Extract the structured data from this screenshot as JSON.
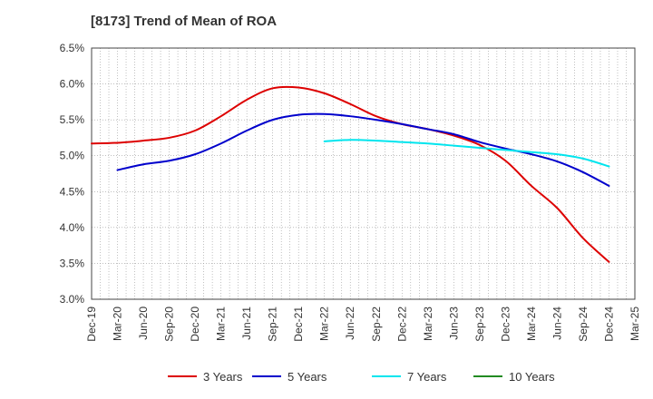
{
  "chart_data": {
    "type": "line",
    "title": "[8173]  Trend of Mean of ROA",
    "xlabel": "",
    "ylabel": "",
    "ylim": [
      3.0,
      6.5
    ],
    "y_ticks": [
      "3.0%",
      "3.5%",
      "4.0%",
      "4.5%",
      "5.0%",
      "5.5%",
      "6.0%",
      "6.5%"
    ],
    "x_ticks": [
      "Dec-19",
      "Mar-20",
      "Jun-20",
      "Sep-20",
      "Dec-20",
      "Mar-21",
      "Jun-21",
      "Sep-21",
      "Dec-21",
      "Mar-22",
      "Jun-22",
      "Sep-22",
      "Dec-22",
      "Mar-23",
      "Jun-23",
      "Sep-23",
      "Dec-23",
      "Mar-24",
      "Jun-24",
      "Sep-24",
      "Dec-24",
      "Mar-25"
    ],
    "grid": true,
    "legend_position": "bottom",
    "series": [
      {
        "name": "3 Years",
        "color": "#dd0000",
        "values": [
          5.17,
          5.18,
          5.21,
          5.25,
          5.35,
          5.55,
          5.78,
          5.94,
          5.95,
          5.87,
          5.72,
          5.55,
          5.44,
          5.37,
          5.28,
          5.15,
          4.93,
          4.58,
          4.27,
          3.85,
          3.52,
          null
        ]
      },
      {
        "name": "5 Years",
        "color": "#0000cc",
        "values": [
          null,
          4.8,
          4.88,
          4.93,
          5.02,
          5.17,
          5.35,
          5.5,
          5.57,
          5.58,
          5.55,
          5.5,
          5.44,
          5.37,
          5.3,
          5.19,
          5.1,
          5.02,
          4.92,
          4.77,
          4.58,
          null
        ]
      },
      {
        "name": "7 Years",
        "color": "#00e5ee",
        "values": [
          null,
          null,
          null,
          null,
          null,
          null,
          null,
          null,
          null,
          5.2,
          5.22,
          5.21,
          5.19,
          5.17,
          5.14,
          5.11,
          5.08,
          5.05,
          5.02,
          4.96,
          4.85,
          null
        ]
      },
      {
        "name": "10 Years",
        "color": "#228b22",
        "values": [
          null,
          null,
          null,
          null,
          null,
          null,
          null,
          null,
          null,
          null,
          null,
          null,
          null,
          null,
          null,
          null,
          null,
          null,
          null,
          null,
          null,
          null
        ]
      }
    ]
  }
}
